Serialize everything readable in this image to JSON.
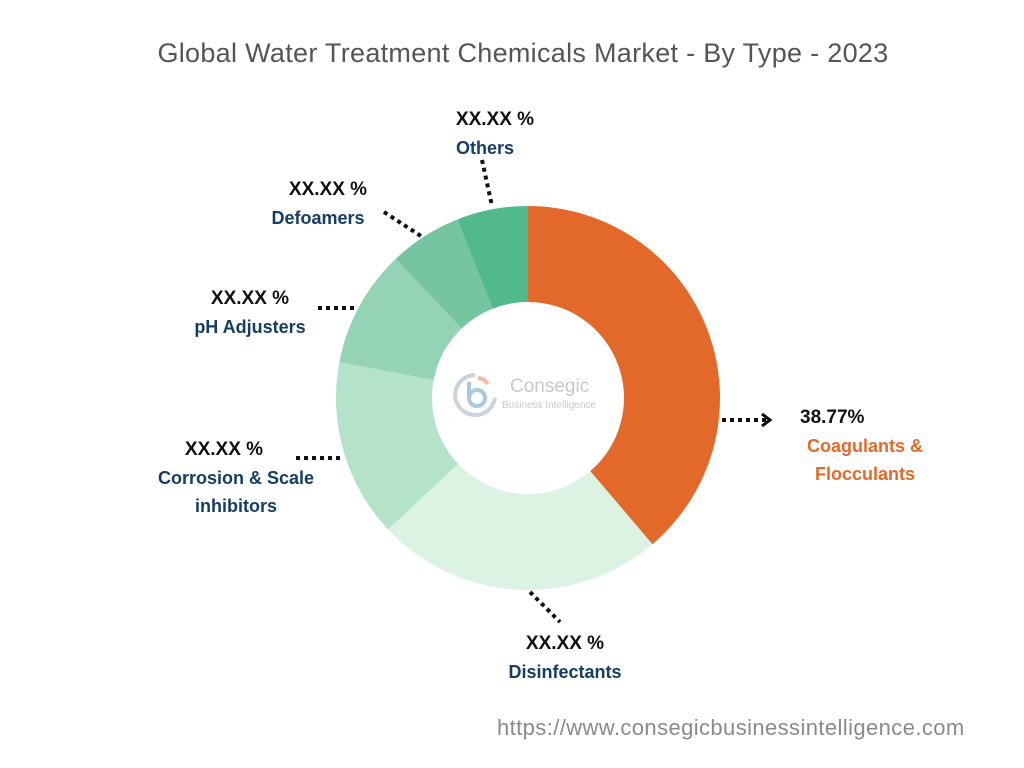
{
  "chart_data": {
    "type": "pie",
    "variant": "donut",
    "title": "Global Water Treatment Chemicals Market - By Type - 2023",
    "categories": [
      "Coagulants & Flocculants",
      "Disinfectants",
      "Corrosion & Scale inhibitors",
      "pH Adjusters",
      "Defoamers",
      "Others"
    ],
    "values": [
      38.77,
      24.2,
      15.0,
      9.9,
      6.1,
      6.0
    ],
    "value_labels": [
      "38.77%",
      "XX.XX %",
      "XX.XX %",
      "XX.XX %",
      "XX.XX %",
      "XX.XX %"
    ],
    "colors": [
      "#e3692a",
      "#dcf2e3",
      "#b4e3c9",
      "#94d4b4",
      "#74c5a0",
      "#52b98c"
    ],
    "label_colors": [
      "#e3692a",
      "#163d66",
      "#163d66",
      "#163d66",
      "#163d66",
      "#163d66"
    ],
    "legend": "none",
    "start": "top, clockwise"
  },
  "logo": {
    "name": "Consegic",
    "tagline": "Business Intelligence"
  },
  "source_url": "https://www.consegicbusinessintelligence.com"
}
